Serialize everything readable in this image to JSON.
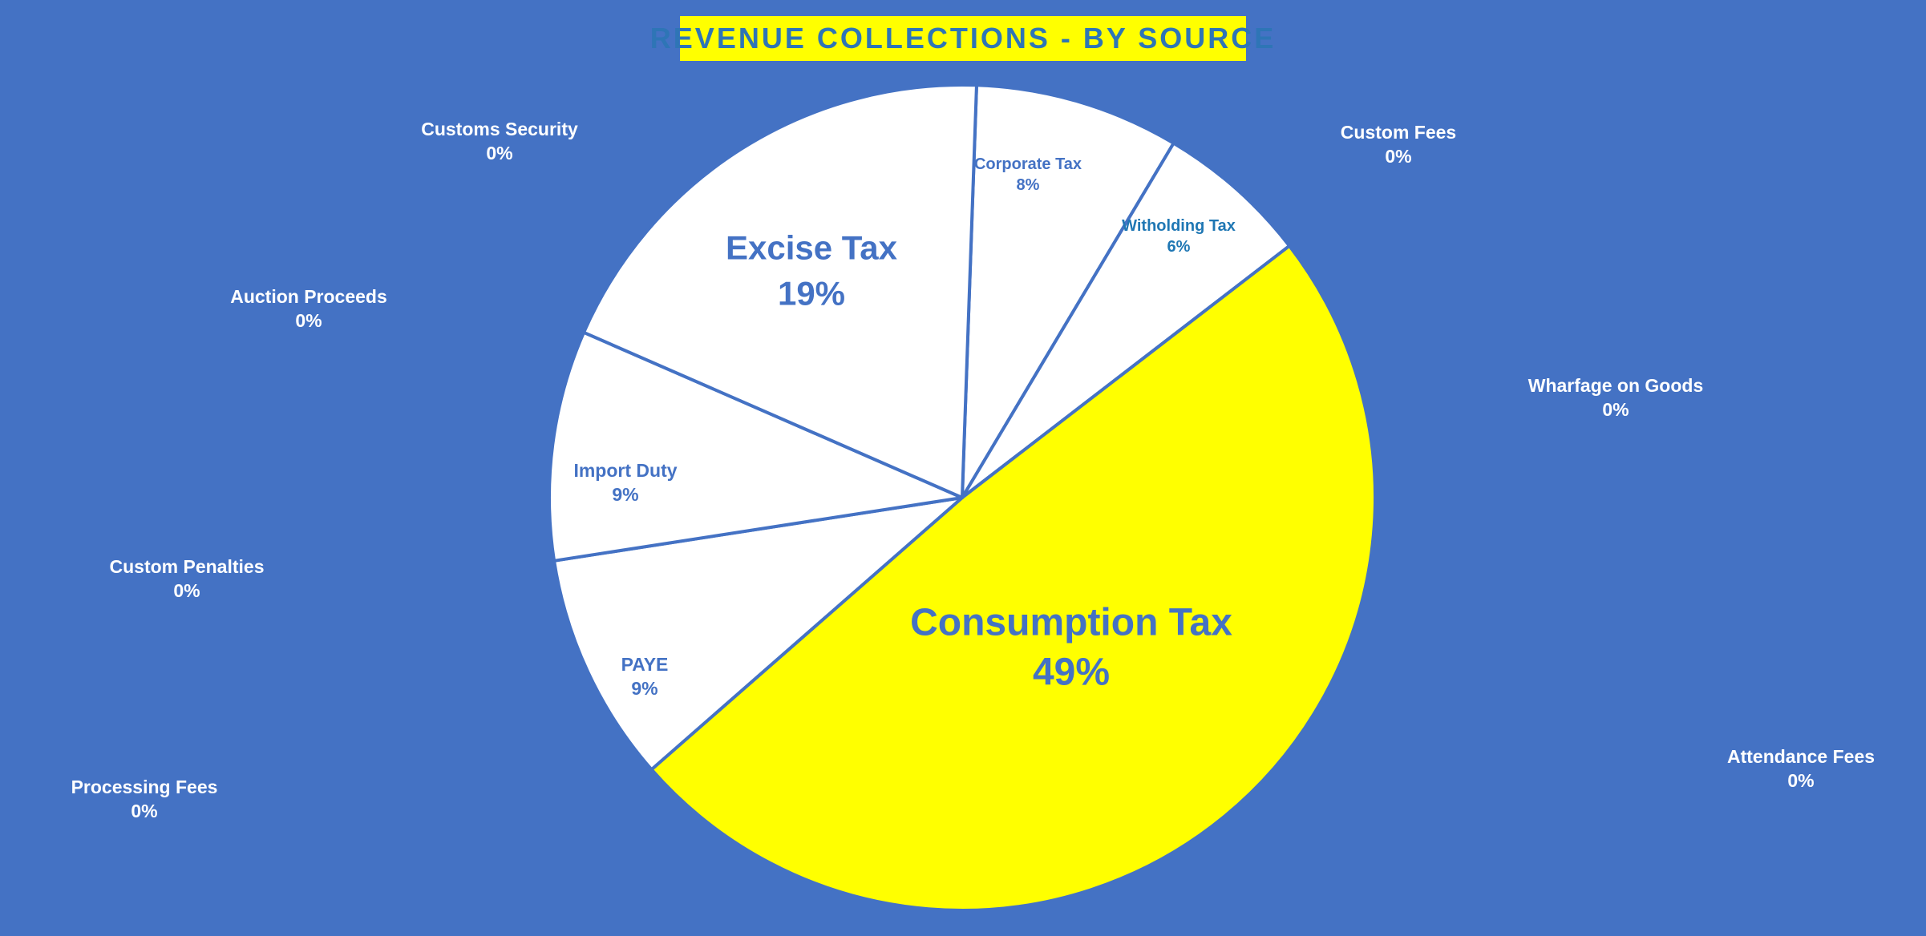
{
  "chart_data": {
    "type": "pie",
    "title": "REVENUE COLLECTIONS - BY SOURCE",
    "slices": [
      {
        "name": "Corporate Tax",
        "value": 8,
        "label": "8%",
        "color": "#FFFFFF"
      },
      {
        "name": "Witholding Tax",
        "value": 6,
        "label": "6%",
        "color": "#FFFFFF"
      },
      {
        "name": "Custom Fees",
        "value": 0,
        "label": "0%",
        "color": "#FFFFFF"
      },
      {
        "name": "Wharfage on Goods",
        "value": 0,
        "label": "0%",
        "color": "#FFFFFF"
      },
      {
        "name": "Consumption Tax",
        "value": 49,
        "label": "49%",
        "color": "#FFFF00"
      },
      {
        "name": "Attendance Fees",
        "value": 0,
        "label": "0%",
        "color": "#FFFFFF"
      },
      {
        "name": "PAYE",
        "value": 9,
        "label": "9%",
        "color": "#FFFFFF"
      },
      {
        "name": "Processing Fees",
        "value": 0,
        "label": "0%",
        "color": "#FFFFFF"
      },
      {
        "name": "Import Duty",
        "value": 9,
        "label": "9%",
        "color": "#FFFFFF"
      },
      {
        "name": "Custom Penalties",
        "value": 0,
        "label": "0%",
        "color": "#FFFFFF"
      },
      {
        "name": "Excise Tax",
        "value": 19,
        "label": "19%",
        "color": "#FFFFFF"
      },
      {
        "name": "Auction Proceeds",
        "value": 0,
        "label": "0%",
        "color": "#FFFFFF"
      },
      {
        "name": "Customs Security",
        "value": 0,
        "label": "0%",
        "color": "#FFFFFF"
      }
    ],
    "colors": {
      "background": "#4472C4",
      "highlight": "#FFFF00",
      "slice": "#FFFFFF",
      "border": "#4472C4"
    }
  }
}
